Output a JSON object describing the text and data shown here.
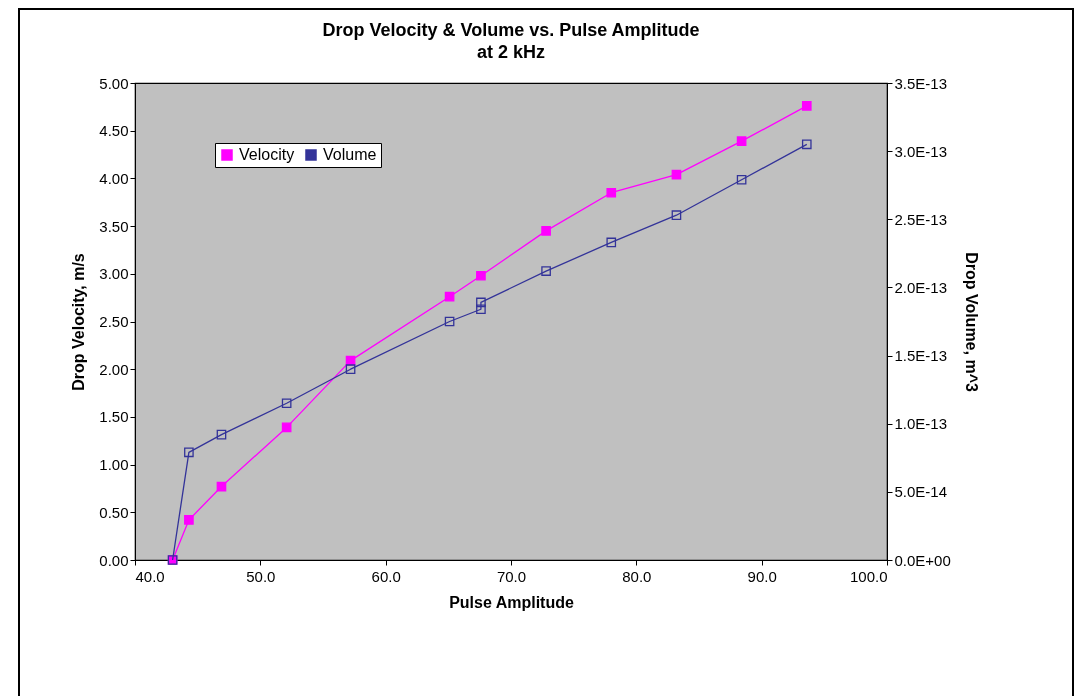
{
  "chart_data": {
    "type": "line",
    "title": "Drop Velocity & Volume vs. Pulse Amplitude",
    "subtitle": "at 2 kHz",
    "xlabel": "Pulse Amplitude",
    "ylabel": "Drop Velocity, m/s",
    "y2label": "Drop Volume, m^3",
    "series": [
      {
        "name": "Velocity",
        "color": "#ff00ff",
        "x": [
          43.0,
          44.3,
          46.9,
          52.1,
          57.2,
          65.1,
          67.6,
          72.8,
          78.0,
          83.2,
          88.4,
          93.6
        ],
        "values": [
          0.0,
          0.42,
          0.77,
          1.39,
          2.09,
          2.76,
          2.98,
          3.45,
          3.85,
          4.04,
          4.39,
          4.76
        ]
      },
      {
        "name": "Volume",
        "color": "#333399",
        "axis": "y2",
        "x": [
          43.0,
          44.3,
          46.9,
          52.1,
          57.2,
          65.1,
          67.6,
          67.6,
          72.8,
          78.0,
          83.2,
          88.4,
          93.6
        ],
        "values": [
          0.0,
          7.9e-14,
          9.2e-14,
          1.15e-13,
          1.4e-13,
          1.75e-13,
          1.84e-13,
          1.89e-13,
          2.12e-13,
          2.33e-13,
          2.53e-13,
          2.79e-13,
          3.05e-13
        ]
      }
    ],
    "xlim": [
      40,
      100
    ],
    "xticks": [
      {
        "value": 40,
        "label": "40.0"
      },
      {
        "value": 50,
        "label": "50.0"
      },
      {
        "value": 60,
        "label": "60.0"
      },
      {
        "value": 70,
        "label": "70.0"
      },
      {
        "value": 80,
        "label": "80.0"
      },
      {
        "value": 90,
        "label": "90.0"
      },
      {
        "value": 100,
        "label": "100.0"
      }
    ],
    "ylim": [
      0,
      5
    ],
    "yticks": [
      {
        "value": 0,
        "label": "0.00"
      },
      {
        "value": 0.5,
        "label": "0.50"
      },
      {
        "value": 1,
        "label": "1.00"
      },
      {
        "value": 1.5,
        "label": "1.50"
      },
      {
        "value": 2,
        "label": "2.00"
      },
      {
        "value": 2.5,
        "label": "2.50"
      },
      {
        "value": 3,
        "label": "3.00"
      },
      {
        "value": 3.5,
        "label": "3.50"
      },
      {
        "value": 4,
        "label": "4.00"
      },
      {
        "value": 4.5,
        "label": "4.50"
      },
      {
        "value": 5,
        "label": "5.00"
      }
    ],
    "y2lim": [
      0,
      3.5e-13
    ],
    "y2ticks": [
      {
        "value": 0,
        "label": "0.0E+00"
      },
      {
        "value": 5e-14,
        "label": "5.0E-14"
      },
      {
        "value": 1e-13,
        "label": "1.0E-13"
      },
      {
        "value": 1.5e-13,
        "label": "1.5E-13"
      },
      {
        "value": 2e-13,
        "label": "2.0E-13"
      },
      {
        "value": 2.5e-13,
        "label": "2.5E-13"
      },
      {
        "value": 3e-13,
        "label": "3.0E-13"
      },
      {
        "value": 3.5e-13,
        "label": "3.5E-13"
      }
    ],
    "grid": false,
    "legend": "top left",
    "marker": "square",
    "line_style": "solid"
  }
}
